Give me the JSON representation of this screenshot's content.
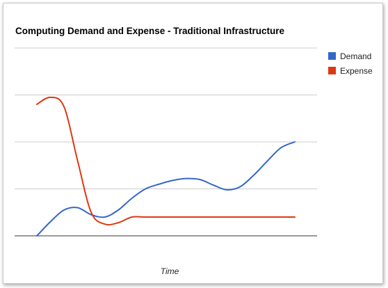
{
  "chart_data": {
    "type": "line",
    "title": "Computing Demand and Expense - Traditional Infrastructure",
    "xlabel": "Time",
    "ylabel": "",
    "ylim": [
      0,
      4
    ],
    "grid": true,
    "legend_position": "right",
    "smooth": true,
    "x": [
      1,
      2,
      3,
      4,
      5,
      6,
      7,
      8,
      9,
      10,
      11,
      12,
      13,
      14,
      15,
      16,
      17,
      18,
      19,
      20
    ],
    "series": [
      {
        "name": "Demand",
        "color": "#3366cc",
        "values": [
          0.0,
          0.3,
          0.55,
          0.6,
          0.45,
          0.4,
          0.55,
          0.8,
          1.0,
          1.1,
          1.18,
          1.22,
          1.2,
          1.08,
          0.98,
          1.05,
          1.3,
          1.6,
          1.88,
          2.0
        ]
      },
      {
        "name": "Expense",
        "color": "#dc3912",
        "values": [
          2.8,
          2.95,
          2.75,
          1.6,
          0.5,
          0.25,
          0.28,
          0.4,
          0.4,
          0.4,
          0.4,
          0.4,
          0.4,
          0.4,
          0.4,
          0.4,
          0.4,
          0.4,
          0.4,
          0.4
        ]
      }
    ]
  }
}
